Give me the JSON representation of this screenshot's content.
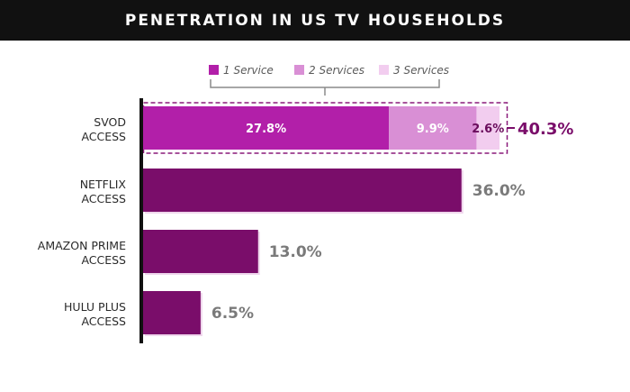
{
  "chart_data": {
    "type": "bar",
    "orientation": "horizontal",
    "title": "PENETRATION IN US TV HOUSEHOLDS",
    "categories": [
      [
        "SVOD",
        "ACCESS"
      ],
      [
        "NETFLIX",
        "ACCESS"
      ],
      [
        "AMAZON PRIME",
        "ACCESS"
      ],
      [
        "HULU PLUS",
        "ACCESS"
      ]
    ],
    "values": [
      40.3,
      36.0,
      13.0,
      6.5
    ],
    "value_labels": [
      "40.3%",
      "36.0%",
      "13.0%",
      "6.5%"
    ],
    "stacked_breakdown": {
      "category_index": 0,
      "series": [
        {
          "name": "1 Service",
          "value": 27.8,
          "label": "27.8%",
          "color": "#b21fa9"
        },
        {
          "name": "2 Services",
          "value": 9.9,
          "label": "9.9%",
          "color": "#d98fd5"
        },
        {
          "name": "3 Services",
          "value": 2.6,
          "label": "2.6%",
          "color": "#f2cdef"
        }
      ],
      "total_label": "40.3%"
    },
    "legend_position": "top",
    "grid": false,
    "xlim": [
      0,
      40.3
    ],
    "colors": {
      "bar": "#7a0d6a",
      "bar_shadow": "#efd6ec",
      "total_text": "#7a0d6a",
      "value_text": "#7a7a7a",
      "dashed_outline": "#8a1a7a",
      "axis_line": "#111111",
      "bracket": "#8a8a8a",
      "inbar_text_light": "#ffffff",
      "inbar_text_dark": "#6a0c5c"
    }
  }
}
